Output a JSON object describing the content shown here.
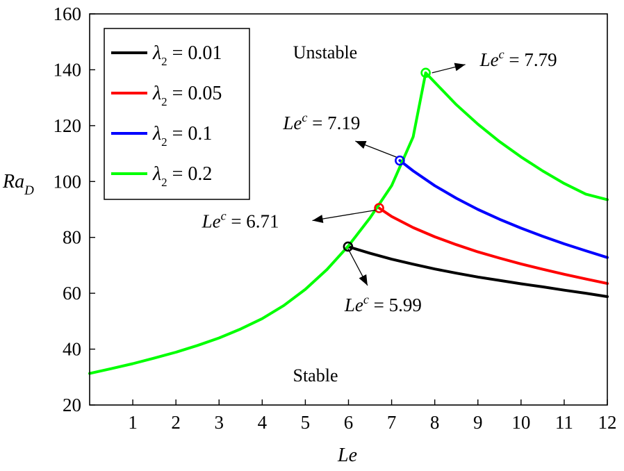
{
  "chart_data": {
    "type": "line",
    "xlabel": "Le",
    "ylabel_main": "Ra",
    "ylabel_sub": "D",
    "xlim": [
      0,
      12
    ],
    "ylim": [
      20,
      160
    ],
    "xticks": [
      1,
      2,
      3,
      4,
      5,
      6,
      7,
      8,
      9,
      10,
      11,
      12
    ],
    "yticks": [
      20,
      40,
      60,
      80,
      100,
      120,
      140,
      160
    ],
    "grid": false,
    "legend_position": "top-left",
    "series": [
      {
        "name": "λ2 = 0.01",
        "symbol": "λ",
        "sub": "2",
        "value_text": " = 0.01",
        "color": "#000000",
        "x": [
          5.99,
          6.5,
          7,
          7.5,
          8,
          8.5,
          9,
          9.5,
          10,
          10.5,
          11,
          11.5,
          12
        ],
        "y": [
          76.7,
          74.3,
          72.2,
          70.4,
          68.7,
          67.2,
          65.8,
          64.6,
          63.4,
          62.3,
          61.1,
          60.0,
          58.8
        ]
      },
      {
        "name": "λ2 = 0.05",
        "symbol": "λ",
        "sub": "2",
        "value_text": " = 0.05",
        "color": "#ff0000",
        "x": [
          6.71,
          7,
          7.5,
          8,
          8.5,
          9,
          9.5,
          10,
          10.5,
          11,
          11.5,
          12
        ],
        "y": [
          90.5,
          87.5,
          83.5,
          80.2,
          77.4,
          74.8,
          72.6,
          70.5,
          68.6,
          66.8,
          65.1,
          63.5
        ]
      },
      {
        "name": "λ2 = 0.1",
        "symbol": "λ",
        "sub": "2",
        "value_text": " = 0.1",
        "color": "#0000ff",
        "x": [
          7.19,
          7.5,
          8,
          8.5,
          9,
          9.5,
          10,
          10.5,
          11,
          11.5,
          12
        ],
        "y": [
          107.5,
          103.8,
          98.5,
          94.0,
          90.0,
          86.5,
          83.3,
          80.4,
          77.7,
          75.2,
          72.8
        ]
      },
      {
        "name": "λ2 = 0.2",
        "symbol": "λ",
        "sub": "2",
        "value_text": " = 0.2",
        "color": "#00ff00",
        "x": [
          0,
          0.5,
          1,
          1.5,
          2,
          2.5,
          3,
          3.5,
          4,
          4.5,
          5,
          5.5,
          6,
          6.5,
          7,
          7.5,
          7.79,
          8,
          8.5,
          9,
          9.5,
          10,
          10.5,
          11,
          11.5,
          12
        ],
        "y": [
          31.3,
          33.0,
          34.8,
          36.8,
          38.9,
          41.3,
          44.0,
          47.2,
          50.9,
          55.6,
          61.4,
          68.5,
          77.0,
          87.0,
          98.5,
          116.0,
          138.9,
          135.5,
          127.5,
          120.5,
          114.3,
          108.8,
          103.8,
          99.3,
          95.5,
          93.5
        ]
      }
    ],
    "critical_points": [
      {
        "le": 5.99,
        "ra": 76.7,
        "color": "#000000",
        "label_prefix": "Le",
        "label_sup": "c",
        "label_value": " = 5.99"
      },
      {
        "le": 6.71,
        "ra": 90.5,
        "color": "#ff0000",
        "label_prefix": "Le",
        "label_sup": "c",
        "label_value": " = 6.71"
      },
      {
        "le": 7.19,
        "ra": 107.5,
        "color": "#0000ff",
        "label_prefix": "Le",
        "label_sup": "c",
        "label_value": " = 7.19"
      },
      {
        "le": 7.79,
        "ra": 138.9,
        "color": "#00ff00",
        "label_prefix": "Le",
        "label_sup": "c",
        "label_value": " = 7.79"
      }
    ],
    "regions": {
      "unstable": "Unstable",
      "stable": "Stable"
    }
  }
}
